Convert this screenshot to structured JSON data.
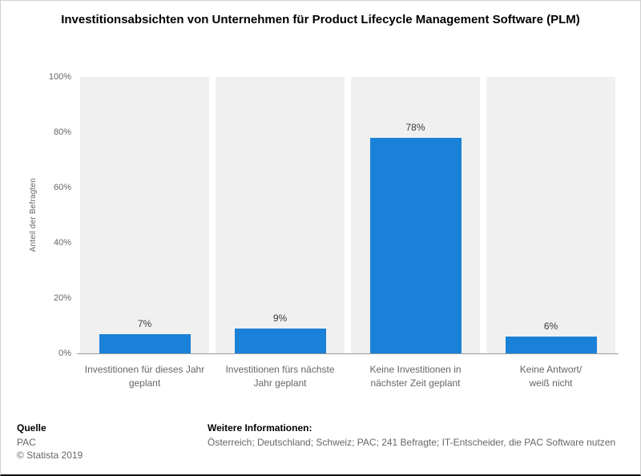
{
  "title": "Investitionsabsichten von Unternehmen für Product Lifecycle Management Software (PLM)",
  "chart_data": {
    "type": "bar",
    "categories": [
      "Investitionen für dieses Jahr\ngeplant",
      "Investitionen fürs nächste\nJahr geplant",
      "Keine Investitionen in\nnächster Zeit geplant",
      "Keine Antwort/\nweiß nicht"
    ],
    "values": [
      7,
      9,
      78,
      6
    ],
    "value_labels": [
      "7%",
      "9%",
      "78%",
      "6%"
    ],
    "title": "Investitionsabsichten von Unternehmen für Product Lifecycle Management Software (PLM)",
    "xlabel": "",
    "ylabel": "Anteil der Befragten",
    "ylim": [
      0,
      100
    ],
    "yticks": [
      0,
      20,
      40,
      60,
      80,
      100
    ],
    "ytick_labels": [
      "0%",
      "20%",
      "40%",
      "60%",
      "80%",
      "100%"
    ],
    "grid": false,
    "legend_position": "none",
    "bar_color": "#1a81d8",
    "band_color": "#f0f0f0"
  },
  "footer": {
    "source_label": "Quelle",
    "source": "PAC",
    "copyright": "© Statista 2019",
    "info_label": "Weitere Informationen:",
    "info": "Österreich; Deutschland; Schweiz; PAC; 241 Befragte; IT-Entscheider, die PAC Software nutzen"
  }
}
